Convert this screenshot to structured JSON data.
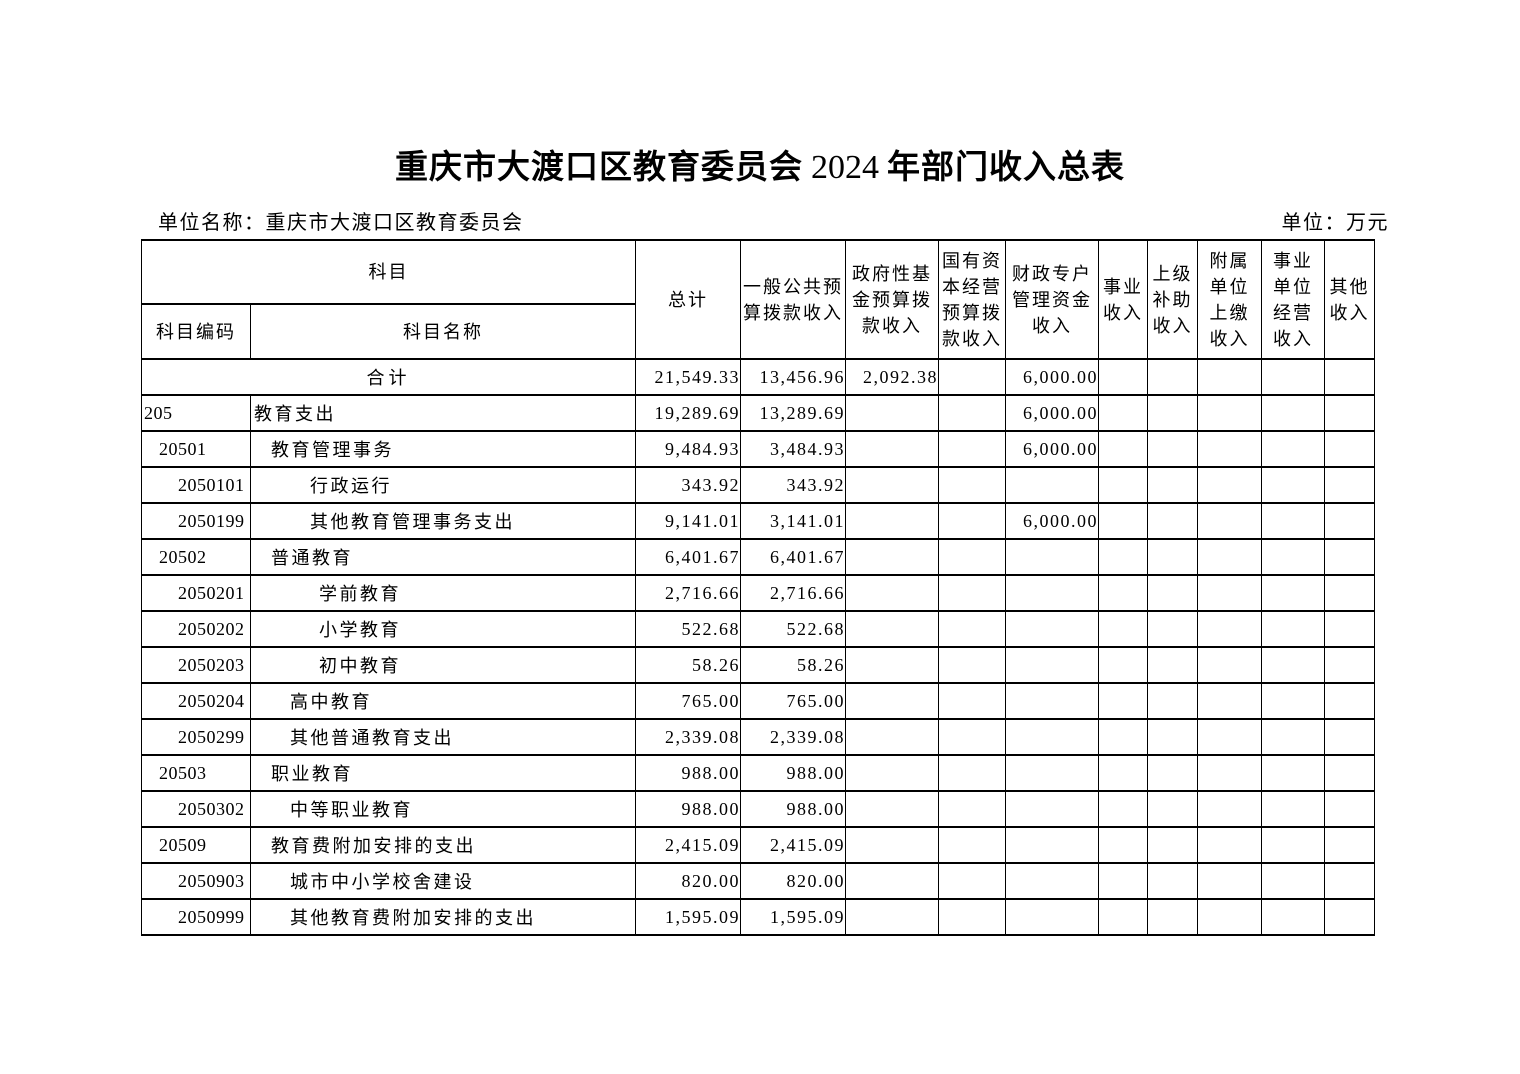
{
  "page": {
    "title_part1": "重庆市大渡口区教育委员会",
    "title_year": "2024",
    "title_part2": "年部门收入总表",
    "unit_name": "单位名称：重庆市大渡口区教育委员会",
    "unit": "单位：万元"
  },
  "table": {
    "header": {
      "subject": "科目",
      "subject_code": "科目编码",
      "subject_name": "科目名称",
      "columns": [
        "总计",
        "一般公共预算拨款收入",
        "政府性基金预算拨款收入",
        "国有资本经营预算拨款收入",
        "财政专户管理资金收入",
        "事业收入",
        "上级补助收入",
        "附属单位上缴收入",
        "事业单位经营收入",
        "其他收入"
      ]
    },
    "total_row": {
      "label": "合计",
      "values": [
        "21,549.33",
        "13,456.96",
        "2,092.38",
        "",
        "6,000.00",
        "",
        "",
        "",
        "",
        ""
      ]
    },
    "rows": [
      {
        "code": "205",
        "name": "教育支出",
        "code_level": 1,
        "name_level": 1,
        "values": [
          "19,289.69",
          "13,289.69",
          "",
          "",
          "6,000.00",
          "",
          "",
          "",
          "",
          ""
        ]
      },
      {
        "code": "20501",
        "name": "教育管理事务",
        "code_level": 2,
        "name_level": 2,
        "values": [
          "9,484.93",
          "3,484.93",
          "",
          "",
          "6,000.00",
          "",
          "",
          "",
          "",
          ""
        ]
      },
      {
        "code": "2050101",
        "name": "行政运行",
        "code_level": 3,
        "name_level": 4,
        "values": [
          "343.92",
          "343.92",
          "",
          "",
          "",
          "",
          "",
          "",
          "",
          ""
        ]
      },
      {
        "code": "2050199",
        "name": "其他教育管理事务支出",
        "code_level": 3,
        "name_level": 4,
        "values": [
          "9,141.01",
          "3,141.01",
          "",
          "",
          "6,000.00",
          "",
          "",
          "",
          "",
          ""
        ]
      },
      {
        "code": "20502",
        "name": "普通教育",
        "code_level": 2,
        "name_level": 2,
        "values": [
          "6,401.67",
          "6,401.67",
          "",
          "",
          "",
          "",
          "",
          "",
          "",
          ""
        ]
      },
      {
        "code": "2050201",
        "name": "学前教育",
        "code_level": 3,
        "name_level": 5,
        "values": [
          "2,716.66",
          "2,716.66",
          "",
          "",
          "",
          "",
          "",
          "",
          "",
          ""
        ]
      },
      {
        "code": "2050202",
        "name": "小学教育",
        "code_level": 3,
        "name_level": 5,
        "values": [
          "522.68",
          "522.68",
          "",
          "",
          "",
          "",
          "",
          "",
          "",
          ""
        ]
      },
      {
        "code": "2050203",
        "name": "初中教育",
        "code_level": 3,
        "name_level": 5,
        "values": [
          "58.26",
          "58.26",
          "",
          "",
          "",
          "",
          "",
          "",
          "",
          ""
        ]
      },
      {
        "code": "2050204",
        "name": "高中教育",
        "code_level": 3,
        "name_level": 3,
        "values": [
          "765.00",
          "765.00",
          "",
          "",
          "",
          "",
          "",
          "",
          "",
          ""
        ]
      },
      {
        "code": "2050299",
        "name": "其他普通教育支出",
        "code_level": 3,
        "name_level": 3,
        "values": [
          "2,339.08",
          "2,339.08",
          "",
          "",
          "",
          "",
          "",
          "",
          "",
          ""
        ]
      },
      {
        "code": "20503",
        "name": "职业教育",
        "code_level": 2,
        "name_level": 2,
        "values": [
          "988.00",
          "988.00",
          "",
          "",
          "",
          "",
          "",
          "",
          "",
          ""
        ]
      },
      {
        "code": "2050302",
        "name": "中等职业教育",
        "code_level": 3,
        "name_level": 3,
        "values": [
          "988.00",
          "988.00",
          "",
          "",
          "",
          "",
          "",
          "",
          "",
          ""
        ]
      },
      {
        "code": "20509",
        "name": "教育费附加安排的支出",
        "code_level": 2,
        "name_level": 2,
        "values": [
          "2,415.09",
          "2,415.09",
          "",
          "",
          "",
          "",
          "",
          "",
          "",
          ""
        ]
      },
      {
        "code": "2050903",
        "name": "城市中小学校舍建设",
        "code_level": 3,
        "name_level": 3,
        "values": [
          "820.00",
          "820.00",
          "",
          "",
          "",
          "",
          "",
          "",
          "",
          ""
        ]
      },
      {
        "code": "2050999",
        "name": "其他教育费附加安排的支出",
        "code_level": 3,
        "name_level": 3,
        "values": [
          "1,595.09",
          "1,595.09",
          "",
          "",
          "",
          "",
          "",
          "",
          "",
          ""
        ]
      }
    ]
  }
}
